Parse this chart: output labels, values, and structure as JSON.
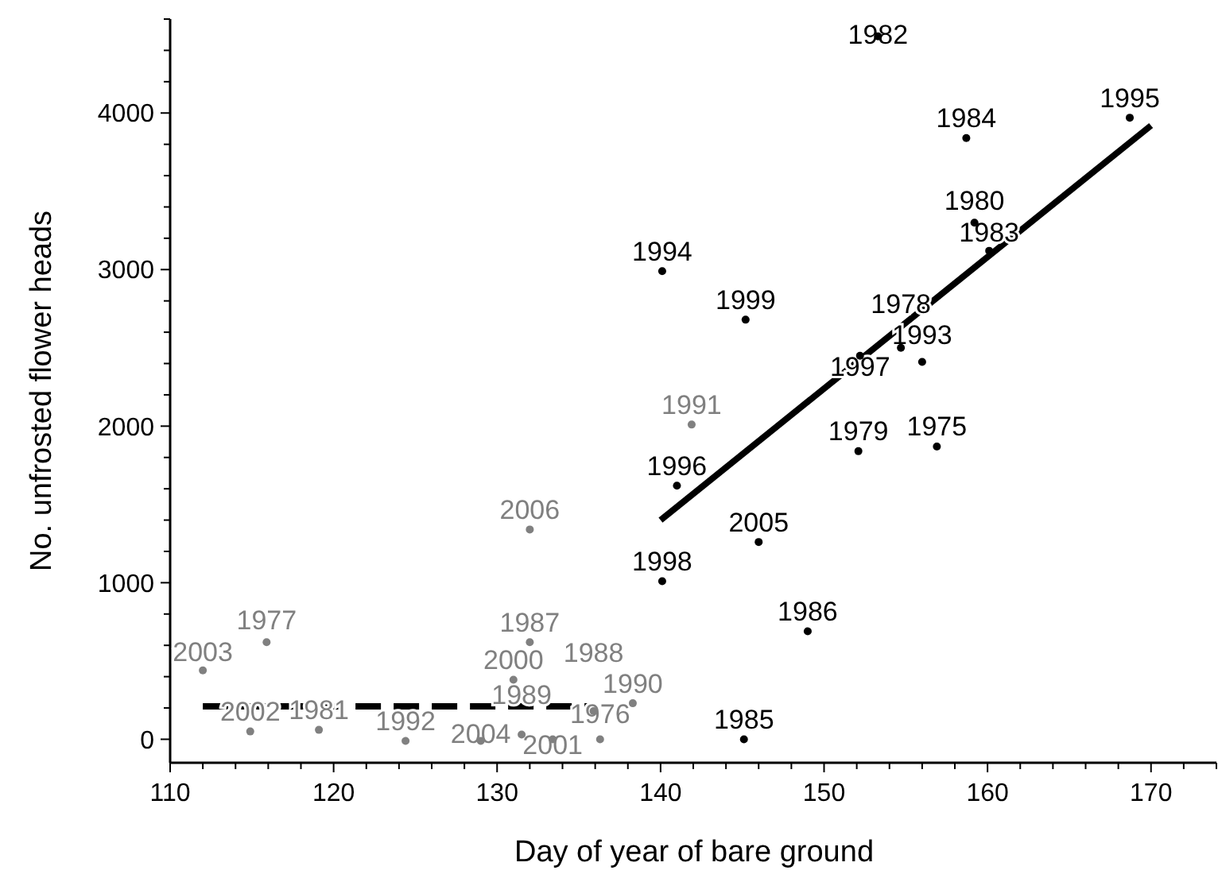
{
  "chart_data": {
    "type": "scatter",
    "xlabel": "Day of year of bare ground",
    "ylabel": "No. unfrosted flower heads",
    "xlim": [
      110,
      174
    ],
    "ylim": [
      -150,
      4600
    ],
    "xticks": [
      110,
      {
        "value": 112,
        "label": null
      },
      {
        "value": 114,
        "label": null
      },
      {
        "value": 116,
        "label": null
      },
      {
        "value": 118,
        "label": null
      },
      120,
      {
        "value": 122,
        "label": null
      },
      {
        "value": 124,
        "label": null
      },
      {
        "value": 126,
        "label": null
      },
      {
        "value": 128,
        "label": null
      },
      130,
      {
        "value": 132,
        "label": null
      },
      {
        "value": 134,
        "label": null
      },
      {
        "value": 136,
        "label": null
      },
      {
        "value": 138,
        "label": null
      },
      140,
      {
        "value": 142,
        "label": null
      },
      {
        "value": 144,
        "label": null
      },
      {
        "value": 146,
        "label": null
      },
      {
        "value": 148,
        "label": null
      },
      150,
      {
        "value": 152,
        "label": null
      },
      {
        "value": 154,
        "label": null
      },
      {
        "value": 156,
        "label": null
      },
      {
        "value": 158,
        "label": null
      },
      160,
      {
        "value": 162,
        "label": null
      },
      {
        "value": 164,
        "label": null
      },
      {
        "value": 166,
        "label": null
      },
      {
        "value": 168,
        "label": null
      },
      170,
      {
        "value": 172,
        "label": null
      },
      {
        "value": 174,
        "label": null
      }
    ],
    "yticks": [
      0,
      {
        "value": 200,
        "label": null
      },
      {
        "value": 400,
        "label": null
      },
      {
        "value": 600,
        "label": null
      },
      {
        "value": 800,
        "label": null
      },
      1000,
      {
        "value": 1200,
        "label": null
      },
      {
        "value": 1400,
        "label": null
      },
      {
        "value": 1600,
        "label": null
      },
      {
        "value": 1800,
        "label": null
      },
      2000,
      {
        "value": 2200,
        "label": null
      },
      {
        "value": 2400,
        "label": null
      },
      {
        "value": 2600,
        "label": null
      },
      {
        "value": 2800,
        "label": null
      },
      3000,
      {
        "value": 3200,
        "label": null
      },
      {
        "value": 3400,
        "label": null
      },
      {
        "value": 3600,
        "label": null
      },
      {
        "value": 3800,
        "label": null
      },
      4000,
      {
        "value": 4200,
        "label": null
      },
      {
        "value": 4400,
        "label": null
      },
      {
        "value": 4600,
        "label": null
      }
    ],
    "grid": false,
    "series": [
      {
        "type": "scatter",
        "marker": "circle",
        "color": "#000000",
        "x": [
          153.3,
          168.7,
          158.7,
          159.2,
          160.1,
          140.1,
          145.2,
          152.2,
          154.7,
          156.0,
          152.1,
          156.9,
          141.0,
          146.0,
          140.1,
          149.0,
          145.1
        ],
        "values": [
          4490,
          3970,
          3840,
          3300,
          3120,
          2990,
          2680,
          2450,
          2500,
          2410,
          1840,
          1870,
          1620,
          1260,
          1010,
          690,
          0
        ]
      },
      {
        "type": "scatter",
        "marker": "circle",
        "color": "#808080",
        "x": [
          132.0,
          141.9,
          112.0,
          115.9,
          114.9,
          119.1,
          124.4,
          129.0,
          131.5,
          133.4,
          136.3,
          132.0,
          131.0,
          135.9,
          138.3
        ],
        "values": [
          1340,
          2010,
          440,
          620,
          50,
          60,
          -10,
          -10,
          30,
          0,
          0,
          620,
          380,
          180,
          230
        ]
      },
      {
        "type": "line",
        "color": "#000000",
        "line_style": "dashed",
        "x": [
          112,
          136
        ],
        "values": [
          210,
          210
        ]
      },
      {
        "type": "line",
        "color": "#000000",
        "line_style": "solid",
        "x": [
          140,
          170
        ],
        "values": [
          1400,
          3920
        ]
      }
    ],
    "annotations": [
      {
        "text": "1982",
        "x": 153.3,
        "y": 4490
      },
      {
        "text": "1995",
        "x": 168.7,
        "y": 3970
      },
      {
        "text": "1984",
        "x": 158.7,
        "y": 3840
      },
      {
        "text": "1980",
        "x": 159.2,
        "y": 3300
      },
      {
        "text": "1983",
        "x": 160.1,
        "y": 3120
      },
      {
        "text": "1994",
        "x": 140.1,
        "y": 2990
      },
      {
        "text": "1999",
        "x": 145.2,
        "y": 2680
      },
      {
        "text": "1997",
        "x": 152.2,
        "y": 2450
      },
      {
        "text": "1978",
        "x": 154.7,
        "y": 2500
      },
      {
        "text": "1993",
        "x": 156.0,
        "y": 2410
      },
      {
        "text": "1979",
        "x": 152.1,
        "y": 1840
      },
      {
        "text": "1975",
        "x": 156.9,
        "y": 1870
      },
      {
        "text": "1996",
        "x": 141.0,
        "y": 1620
      },
      {
        "text": "2005",
        "x": 146.0,
        "y": 1260
      },
      {
        "text": "1998",
        "x": 140.1,
        "y": 1010
      },
      {
        "text": "1986",
        "x": 149.0,
        "y": 690
      },
      {
        "text": "1985",
        "x": 145.1,
        "y": 0
      },
      {
        "text": "2006",
        "x": 132.0,
        "y": 1340
      },
      {
        "text": "1991",
        "x": 141.9,
        "y": 2010
      },
      {
        "text": "2003",
        "x": 112.0,
        "y": 440
      },
      {
        "text": "1977",
        "x": 115.9,
        "y": 620
      },
      {
        "text": "2002",
        "x": 114.9,
        "y": 50
      },
      {
        "text": "1981",
        "x": 119.1,
        "y": 60
      },
      {
        "text": "1992",
        "x": 124.4,
        "y": -10
      },
      {
        "text": "2004",
        "x": 129.0,
        "y": -10
      },
      {
        "text": "1989",
        "x": 131.5,
        "y": 30
      },
      {
        "text": "2001",
        "x": 133.4,
        "y": 0
      },
      {
        "text": "1976",
        "x": 136.3,
        "y": 0
      },
      {
        "text": "1987",
        "x": 132.0,
        "y": 620
      },
      {
        "text": "2000",
        "x": 131.0,
        "y": 380
      },
      {
        "text": "1988",
        "x": 135.9,
        "y": 180
      },
      {
        "text": "1990",
        "x": 138.3,
        "y": 230
      }
    ]
  }
}
